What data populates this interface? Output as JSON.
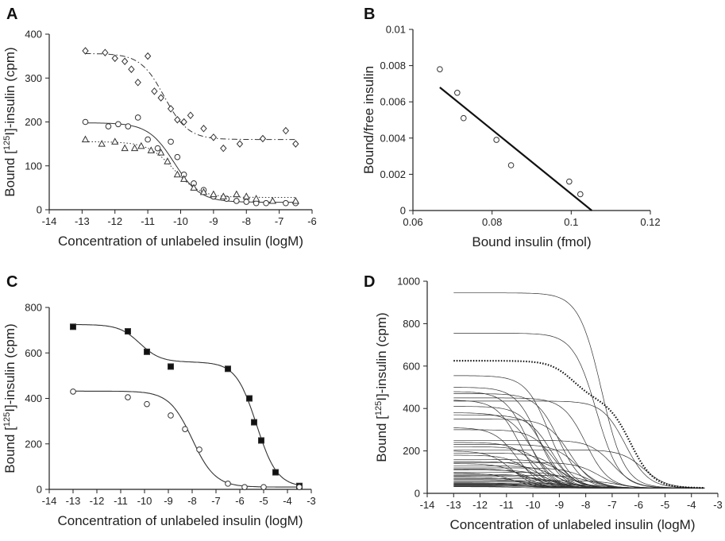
{
  "chart_data": [
    {
      "panel": "A",
      "type": "scatter",
      "xlabel": "Concentration of unlabeled insulin (logM)",
      "ylabel_parts": [
        "Bound [",
        "125",
        "I]-insulin (cpm)"
      ],
      "xlim": [
        -14,
        -6
      ],
      "ylim": [
        0,
        400
      ],
      "xticks": [
        -14,
        -13,
        -12,
        -11,
        -10,
        -9,
        -8,
        -7,
        -6
      ],
      "yticks": [
        0,
        100,
        200,
        300,
        400
      ],
      "series": [
        {
          "marker": "diamond",
          "line": "dashdot",
          "x": [
            -12.9,
            -12.3,
            -12.0,
            -11.7,
            -11.5,
            -11.3,
            -11.0,
            -10.8,
            -10.6,
            -10.3,
            -10.1,
            -9.9,
            -9.7,
            -9.3,
            -9.0,
            -8.7,
            -8.2,
            -7.5,
            -6.8,
            -6.5
          ],
          "y": [
            362,
            358,
            345,
            338,
            320,
            290,
            350,
            270,
            255,
            230,
            205,
            200,
            215,
            185,
            165,
            140,
            150,
            162,
            180,
            150
          ],
          "curve": {
            "top": 356,
            "bottom": 160,
            "logEC50": -10.5,
            "slope": 1.2
          }
        },
        {
          "marker": "circle",
          "line": "solid",
          "x": [
            -12.9,
            -12.2,
            -11.9,
            -11.6,
            -11.3,
            -11.0,
            -10.7,
            -10.3,
            -10.1,
            -9.9,
            -9.6,
            -9.3,
            -9.0,
            -8.6,
            -8.3,
            -8.0,
            -7.7,
            -7.4,
            -6.8,
            -6.5
          ],
          "y": [
            200,
            190,
            195,
            190,
            210,
            160,
            140,
            155,
            120,
            80,
            60,
            45,
            30,
            25,
            20,
            18,
            15,
            15,
            15,
            15
          ],
          "curve": {
            "top": 198,
            "bottom": 17,
            "logEC50": -10.2,
            "slope": 1.1
          }
        },
        {
          "marker": "triangle",
          "line": "dotted",
          "x": [
            -12.9,
            -12.4,
            -12.0,
            -11.7,
            -11.4,
            -11.2,
            -10.9,
            -10.6,
            -10.4,
            -10.1,
            -9.9,
            -9.6,
            -9.3,
            -9.0,
            -8.7,
            -8.3,
            -8.0,
            -7.7,
            -7.2,
            -6.5
          ],
          "y": [
            160,
            150,
            155,
            140,
            140,
            145,
            135,
            130,
            110,
            80,
            70,
            50,
            40,
            35,
            30,
            35,
            30,
            25,
            20,
            20
          ],
          "curve": {
            "top": 155,
            "bottom": 28,
            "logEC50": -10.2,
            "slope": 1.1
          }
        }
      ]
    },
    {
      "panel": "B",
      "type": "scatter",
      "xlabel": "Bound insulin (fmol)",
      "ylabel": "Bound/free insulin",
      "xlim": [
        0.06,
        0.12
      ],
      "ylim": [
        0,
        0.01
      ],
      "xticks": [
        0.06,
        0.08,
        0.1,
        0.12
      ],
      "xtick_labels": [
        "0.06",
        "0.08",
        "0.1",
        "0.12"
      ],
      "yticks": [
        0,
        0.002,
        0.004,
        0.006,
        0.008,
        0.01
      ],
      "ytick_labels": [
        "0",
        "0.002",
        "0.004",
        "0.006",
        "0.008",
        "0.01"
      ],
      "points": {
        "x": [
          0.0668,
          0.0712,
          0.0728,
          0.0811,
          0.0848,
          0.0995,
          0.1023
        ],
        "y": [
          0.0078,
          0.0065,
          0.0051,
          0.0039,
          0.0025,
          0.0016,
          0.0009
        ]
      },
      "fit_line": {
        "x": [
          0.0668,
          0.1052
        ],
        "y": [
          0.0068,
          0.0
        ]
      }
    },
    {
      "panel": "C",
      "type": "scatter",
      "xlabel": "Concentration of unlabeled insulin (logM)",
      "ylabel_parts": [
        "Bound [",
        "125",
        "I]-insulin (cpm)"
      ],
      "xlim": [
        -14,
        -3
      ],
      "ylim": [
        0,
        800
      ],
      "xticks": [
        -14,
        -13,
        -12,
        -11,
        -10,
        -9,
        -8,
        -7,
        -6,
        -5,
        -4,
        -3
      ],
      "yticks": [
        0,
        200,
        400,
        600,
        800
      ],
      "series": [
        {
          "marker": "square-filled",
          "x": [
            -13.0,
            -10.7,
            -9.9,
            -8.9,
            -6.5,
            -5.6,
            -5.4,
            -5.1,
            -4.5,
            -3.5
          ],
          "y": [
            715,
            695,
            605,
            540,
            530,
            400,
            295,
            215,
            75,
            15
          ],
          "curve": {
            "type": "biphasic",
            "bottom": 10,
            "a1": 165,
            "ec1": -10.2,
            "a2": 550,
            "ec2": -5.3,
            "slope": 1.0
          }
        },
        {
          "marker": "circle",
          "x": [
            -13.0,
            -10.7,
            -9.9,
            -8.9,
            -8.3,
            -7.7,
            -6.5,
            -5.8,
            -5.0,
            -3.5
          ],
          "y": [
            430,
            405,
            375,
            325,
            265,
            175,
            25,
            10,
            10,
            10
          ],
          "curve": {
            "top": 432,
            "bottom": 10,
            "logEC50": -8.0,
            "slope": 0.9
          }
        }
      ]
    },
    {
      "panel": "D",
      "type": "line",
      "xlabel": "Concentration of unlabeled insulin (logM)",
      "ylabel_parts": [
        "Bound [",
        "125",
        "I]-insulin (cpm)"
      ],
      "xlim": [
        -14,
        -3
      ],
      "ylim": [
        0,
        1000
      ],
      "xticks": [
        -14,
        -13,
        -12,
        -11,
        -10,
        -9,
        -8,
        -7,
        -6,
        -5,
        -4,
        -3
      ],
      "yticks": [
        0,
        200,
        400,
        600,
        800,
        1000
      ],
      "x_range": [
        -13,
        -3.5
      ],
      "highlight_curve": {
        "type": "biphasic",
        "bottom": 25,
        "a1": 180,
        "ec1": -8.5,
        "a2": 420,
        "ec2": -6.3,
        "slope": 1.0
      },
      "curves": [
        {
          "top": 945,
          "ec": -7.4
        },
        {
          "top": 755,
          "ec": -7.6
        },
        {
          "top": 555,
          "ec": -9.4
        },
        {
          "top": 500,
          "ec": -9.8
        },
        {
          "top": 480,
          "ec": -10.2
        },
        {
          "top": 470,
          "ec": -9.0
        },
        {
          "top": 450,
          "ec": -8.0
        },
        {
          "top": 440,
          "ec": -10.5
        },
        {
          "top": 435,
          "ec": -6.5
        },
        {
          "top": 410,
          "ec": -9.6
        },
        {
          "top": 380,
          "ec": -10.0
        },
        {
          "top": 370,
          "ec": -9.3
        },
        {
          "top": 350,
          "ec": -8.6
        },
        {
          "top": 310,
          "ec": -10.6
        },
        {
          "top": 300,
          "ec": -9.2
        },
        {
          "top": 250,
          "ec": -7.0
        },
        {
          "top": 240,
          "ec": -9.9
        },
        {
          "top": 230,
          "ec": -8.3
        },
        {
          "top": 220,
          "ec": -9.5
        },
        {
          "top": 205,
          "ec": -5.8
        },
        {
          "top": 200,
          "ec": -10.8
        },
        {
          "top": 190,
          "ec": -9.0
        },
        {
          "top": 180,
          "ec": -10.1
        },
        {
          "top": 160,
          "ec": -8.8
        },
        {
          "top": 150,
          "ec": -9.7
        },
        {
          "top": 145,
          "ec": -7.5
        },
        {
          "top": 140,
          "ec": -10.4
        },
        {
          "top": 130,
          "ec": -9.1
        },
        {
          "top": 120,
          "ec": -8.0
        },
        {
          "top": 115,
          "ec": -10.0
        },
        {
          "top": 110,
          "ec": -9.4
        },
        {
          "top": 100,
          "ec": -8.5
        },
        {
          "top": 95,
          "ec": -10.7
        },
        {
          "top": 90,
          "ec": -9.6
        },
        {
          "top": 85,
          "ec": -7.8
        },
        {
          "top": 80,
          "ec": -9.2
        },
        {
          "top": 75,
          "ec": -10.3
        },
        {
          "top": 70,
          "ec": -8.7
        },
        {
          "top": 65,
          "ec": -9.9
        },
        {
          "top": 60,
          "ec": -6.8
        },
        {
          "top": 55,
          "ec": -9.0
        },
        {
          "top": 50,
          "ec": -10.5
        },
        {
          "top": 48,
          "ec": -8.2
        },
        {
          "top": 45,
          "ec": -9.5
        },
        {
          "top": 42,
          "ec": -7.2
        },
        {
          "top": 40,
          "ec": -10.1
        },
        {
          "top": 38,
          "ec": -8.9
        },
        {
          "top": 35,
          "ec": -9.7
        },
        {
          "top": 33,
          "ec": -8.0
        },
        {
          "top": 31,
          "ec": -10.6
        }
      ]
    }
  ]
}
